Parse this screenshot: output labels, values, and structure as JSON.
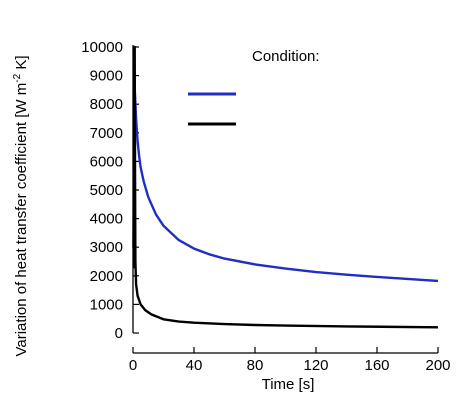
{
  "chart_data": {
    "type": "line",
    "title": "",
    "xlabel": "Time [s]",
    "ylabel_main": "Variation of heat transfer coefficient [W m",
    "ylabel_sup": "-2",
    "ylabel_tail": " K]",
    "xlim": [
      0,
      200
    ],
    "ylim": [
      0,
      10000
    ],
    "x_ticks": [
      0,
      40,
      80,
      120,
      160,
      200
    ],
    "y_ticks": [
      0,
      1000,
      2000,
      3000,
      4000,
      5000,
      6000,
      7000,
      8000,
      9000,
      10000
    ],
    "grid": false,
    "legend": {
      "title": "Condition:",
      "placement": "top-right"
    },
    "series": [
      {
        "color": "#1f2fc4",
        "points": [
          [
            1,
            8700
          ],
          [
            2,
            7500
          ],
          [
            3,
            6700
          ],
          [
            4,
            6200
          ],
          [
            5,
            5800
          ],
          [
            7,
            5300
          ],
          [
            10,
            4750
          ],
          [
            15,
            4150
          ],
          [
            20,
            3750
          ],
          [
            30,
            3250
          ],
          [
            40,
            2950
          ],
          [
            50,
            2750
          ],
          [
            60,
            2600
          ],
          [
            80,
            2400
          ],
          [
            100,
            2250
          ],
          [
            120,
            2130
          ],
          [
            140,
            2040
          ],
          [
            160,
            1960
          ],
          [
            180,
            1890
          ],
          [
            200,
            1820
          ]
        ]
      },
      {
        "color": "#000000",
        "points": [
          [
            0.3,
            3000
          ],
          [
            0.5,
            5000
          ],
          [
            0.7,
            2300
          ],
          [
            0.9,
            5500
          ],
          [
            1.1,
            10000
          ],
          [
            1.3,
            6000
          ],
          [
            1.6,
            2500
          ],
          [
            2,
            1700
          ],
          [
            3,
            1300
          ],
          [
            5,
            1000
          ],
          [
            8,
            800
          ],
          [
            12,
            650
          ],
          [
            20,
            480
          ],
          [
            30,
            400
          ],
          [
            40,
            360
          ],
          [
            60,
            310
          ],
          [
            80,
            280
          ],
          [
            100,
            260
          ],
          [
            140,
            230
          ],
          [
            200,
            200
          ]
        ]
      }
    ]
  }
}
